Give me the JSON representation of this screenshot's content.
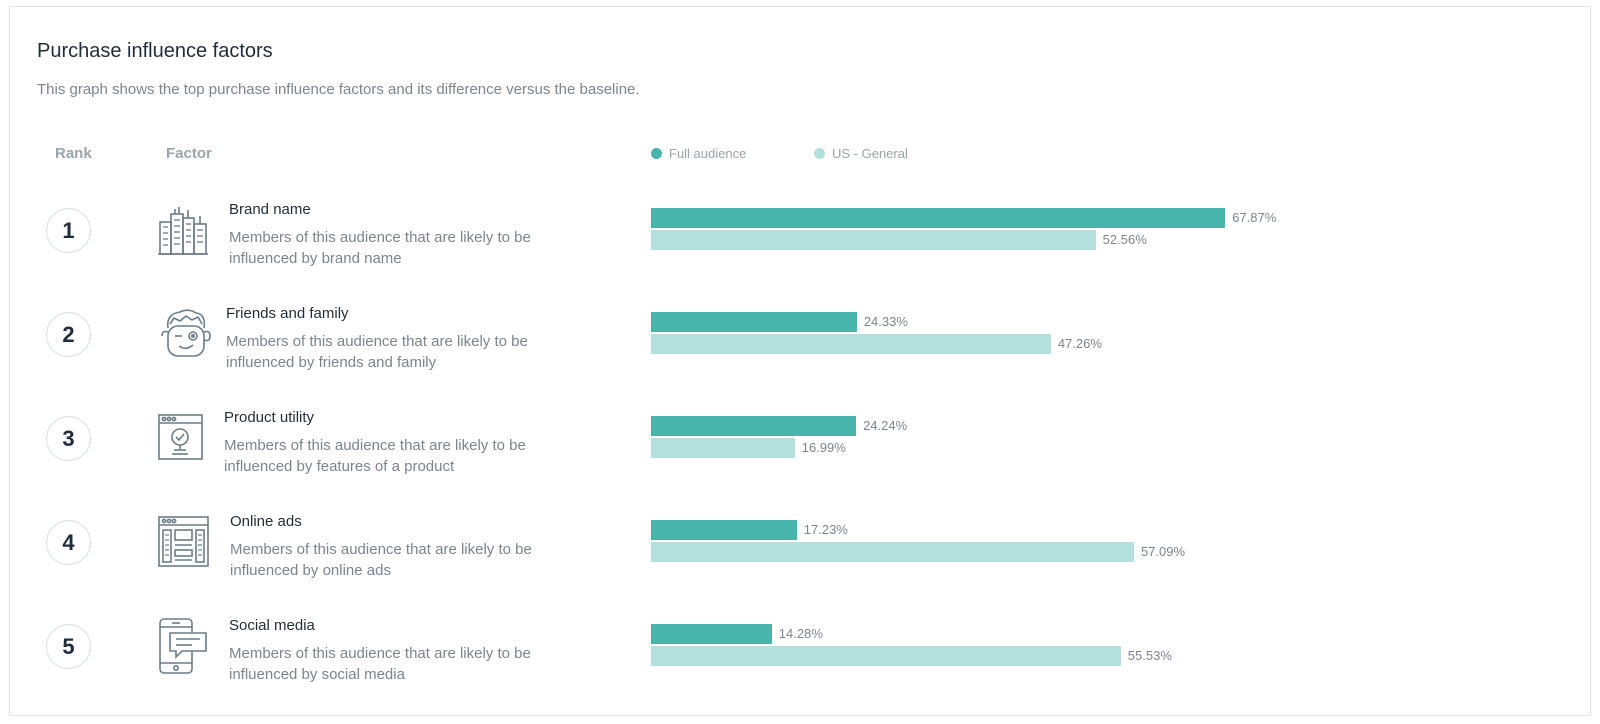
{
  "header": {
    "title": "Purchase influence factors",
    "subtitle": "This graph shows the top purchase influence factors and its difference versus the baseline."
  },
  "columns": {
    "rank": "Rank",
    "factor": "Factor"
  },
  "colors": {
    "full": "#47b5ac",
    "base": "#b3e0dc"
  },
  "chart_data": {
    "type": "bar",
    "orientation": "horizontal",
    "title": "Purchase influence factors",
    "categories": [
      "Brand name",
      "Friends and family",
      "Product utility",
      "Online ads",
      "Social media"
    ],
    "series": [
      {
        "name": "Full audience",
        "values": [
          67.87,
          24.33,
          24.24,
          17.23,
          14.28
        ]
      },
      {
        "name": "US - General",
        "values": [
          52.56,
          47.26,
          16.99,
          57.09,
          55.53
        ]
      }
    ],
    "unit": "%",
    "xlim": [
      0,
      100
    ],
    "legend": "top"
  },
  "factors": [
    {
      "rank": "1",
      "name": "Brand name",
      "icon": "buildings-icon",
      "description": "Members of this audience that are likely to be influenced by brand name",
      "full_label": "67.87%",
      "base_label": "52.56%"
    },
    {
      "rank": "2",
      "name": "Friends and family",
      "icon": "winking-face-icon",
      "description": "Members of this audience that are likely to be influenced by friends and family",
      "full_label": "24.33%",
      "base_label": "47.26%"
    },
    {
      "rank": "3",
      "name": "Product utility",
      "icon": "product-check-icon",
      "description": "Members of this audience that are likely to be influenced by features of a product",
      "full_label": "24.24%",
      "base_label": "16.99%"
    },
    {
      "rank": "4",
      "name": "Online ads",
      "icon": "browser-ads-icon",
      "description": "Members of this audience that are likely to be influenced by online ads",
      "full_label": "17.23%",
      "base_label": "57.09%"
    },
    {
      "rank": "5",
      "name": "Social media",
      "icon": "phone-chat-icon",
      "description": "Members of this audience that are likely to be influenced by social media",
      "full_label": "14.28%",
      "base_label": "55.53%"
    }
  ]
}
